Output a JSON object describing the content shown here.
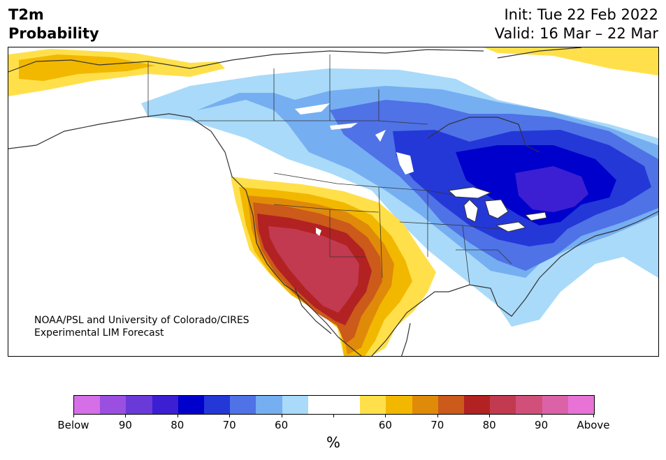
{
  "title": {
    "left_line1": "T2m",
    "left_line2": "Probability",
    "init": "Init: Tue 22 Feb 2022",
    "valid": "Valid: 16 Mar – 22 Mar"
  },
  "credit": {
    "line1": "NOAA/PSL and University of Colorado/CIRES",
    "line2": "Experimental LIM Forecast"
  },
  "colorbar": {
    "colors": [
      "#d56fe8",
      "#9b4fe0",
      "#6a3ad8",
      "#3c1fd2",
      "#0000cc",
      "#2438d8",
      "#4f72e6",
      "#76aef2",
      "#a9daf9",
      "#ffffff",
      "#ffffff",
      "#ffe04a",
      "#f2b800",
      "#e08a0a",
      "#cc5a1a",
      "#b22222",
      "#c23a50",
      "#d0507a",
      "#dc62a8",
      "#e872d6"
    ],
    "tick_labels": [
      "Below",
      "90",
      "80",
      "70",
      "60",
      "",
      "60",
      "70",
      "80",
      "90",
      "Above"
    ],
    "unit": "%"
  },
  "colors": {
    "below_strong": "#0000cc",
    "below_mid": "#2438d8",
    "below_light": "#4f72e6",
    "below_pale": "#76aef2",
    "below_palest": "#a9daf9",
    "above_pale": "#ffe04a",
    "above_light": "#f2b800",
    "above_mid": "#e08a0a",
    "above_strong": "#cc5a1a",
    "above_stronger": "#b22222",
    "above_max": "#c23a50",
    "border": "#333333"
  }
}
